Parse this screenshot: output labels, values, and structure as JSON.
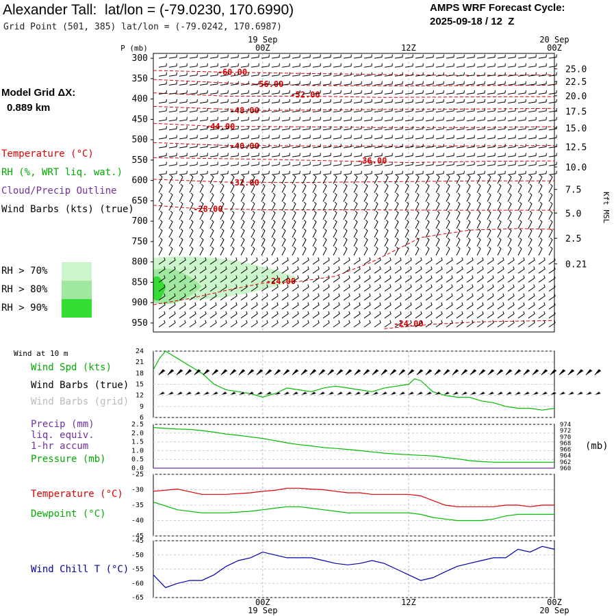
{
  "header": {
    "title": "Alexander Tall:  lat/lon = (-79.0230, 170.6990)",
    "grid_point": "Grid Point (501, 385) lat/lon = (-79.0242, 170.6987)",
    "cycle_line1": "AMPS WRF Forecast Cycle:",
    "cycle_line2": "2025-09-18 / 12  Z",
    "grid_label": "Model Grid ΔX:",
    "grid_value": "0.889 km"
  },
  "legend": {
    "temperature": "Temperature (°C)",
    "rh": "RH (%, WRT liq. wat.)",
    "cloud": "Cloud/Precip Outline",
    "wind": "Wind Barbs (kts) (true)",
    "rh70": "RH > 70%",
    "rh80": "RH > 80%",
    "rh90": "RH > 90%",
    "wind10": "Wind at 10 m",
    "wind_spd": "Wind Spd (kts)",
    "wind_barbs_true": "Wind Barbs (true)",
    "wind_barbs_grid": "Wind Barbs (grid)",
    "precip1": "Precip (mm)",
    "precip2": "liq. equiv.",
    "precip3": "1-hr accum",
    "pressure": "Pressure (mb)",
    "pressure_unit": "(mb)",
    "temp2": "Temperature (°C)",
    "dewpoint": "Dewpoint (°C)",
    "windchill": "Wind Chill T (°C)"
  },
  "colors": {
    "temp": "#dd0000",
    "rh": "#00bb00",
    "cloud": "#7030a0",
    "gray": "#bbbbbb",
    "windchill": "#0000aa",
    "rh70": "#ccf5cc",
    "rh80": "#a0e8a0",
    "rh90": "#33dd33"
  },
  "chart_data": [
    {
      "type": "line",
      "name": "time-height cross section",
      "time_labels": [
        {
          "hour": 0,
          "top": "19 Sep",
          "bottom": "00Z"
        },
        {
          "hour": 12,
          "top": "",
          "bottom": "12Z"
        },
        {
          "hour": 24,
          "top": "20 Sep",
          "bottom": "00Z"
        }
      ],
      "time_range_hours": [
        -9,
        24
      ],
      "y_label": "P (mb)",
      "pressure_levels": [
        300,
        350,
        400,
        450,
        500,
        550,
        600,
        650,
        700,
        750,
        800,
        850,
        900,
        950
      ],
      "right_axis_label": "Kft MSL",
      "height_ticks_kft": [
        {
          "label": "25.0",
          "p": 326
        },
        {
          "label": "22.5",
          "p": 357
        },
        {
          "label": "20.0",
          "p": 392
        },
        {
          "label": "17.5",
          "p": 430
        },
        {
          "label": "15.0",
          "p": 471
        },
        {
          "label": "12.5",
          "p": 517
        },
        {
          "label": "10.0",
          "p": 567
        },
        {
          "label": "7.5",
          "p": 622
        },
        {
          "label": "5.0",
          "p": 680
        },
        {
          "label": "2.5",
          "p": 742
        },
        {
          "label": "0.21",
          "p": 805
        }
      ],
      "temp_contours": [
        {
          "label": "-60.00",
          "label_hour": -2.5,
          "label_p": 334,
          "points": [
            [
              -9,
              330
            ],
            [
              -3,
              334
            ],
            [
              3,
              337
            ],
            [
              10,
              340
            ],
            [
              16,
              342
            ],
            [
              24,
              341
            ]
          ]
        },
        {
          "label": "-56.00",
          "label_hour": 0.5,
          "label_p": 364,
          "points": [
            [
              -9,
              352
            ],
            [
              -2,
              362
            ],
            [
              4,
              367
            ],
            [
              12,
              368
            ],
            [
              18,
              367
            ],
            [
              24,
              366
            ]
          ]
        },
        {
          "label": "-52.00",
          "label_hour": 3.5,
          "label_p": 390,
          "points": [
            [
              -9,
              385
            ],
            [
              -3,
              393
            ],
            [
              4,
              393
            ],
            [
              10,
              396
            ],
            [
              16,
              395
            ],
            [
              24,
              394
            ]
          ]
        },
        {
          "label": "-48.00",
          "label_hour": -1.5,
          "label_p": 428,
          "points": [
            [
              -9,
              418
            ],
            [
              -4,
              424
            ],
            [
              0,
              428
            ],
            [
              8,
              426
            ],
            [
              16,
              425
            ],
            [
              24,
              423
            ]
          ]
        },
        {
          "label": "-44.00",
          "label_hour": -3.5,
          "label_p": 468,
          "points": [
            [
              -9,
              460
            ],
            [
              -4,
              467
            ],
            [
              2,
              468
            ],
            [
              10,
              470
            ],
            [
              18,
              470
            ],
            [
              24,
              468
            ]
          ]
        },
        {
          "label": "-40.00",
          "label_hour": -1.5,
          "label_p": 516,
          "points": [
            [
              -9,
              507
            ],
            [
              -3,
              514
            ],
            [
              3,
              515
            ],
            [
              11,
              516
            ],
            [
              18,
              515
            ],
            [
              24,
              514
            ]
          ]
        },
        {
          "label": "-36.00",
          "label_hour": 9,
          "label_p": 552,
          "points": [
            [
              -9,
              544
            ],
            [
              0,
              548
            ],
            [
              6,
              552
            ],
            [
              12,
              556
            ],
            [
              18,
              553
            ],
            [
              24,
              552
            ]
          ]
        },
        {
          "label": "-32.00",
          "label_hour": -1.5,
          "label_p": 606,
          "points": [
            [
              -9,
              597
            ],
            [
              -3,
              604
            ],
            [
              3,
              605
            ],
            [
              11,
              603
            ],
            [
              18,
              601
            ],
            [
              24,
              601
            ]
          ]
        },
        {
          "label": "-28.00",
          "label_hour": -4.5,
          "label_p": 670,
          "points": [
            [
              -9,
              661
            ],
            [
              -6,
              668
            ],
            [
              0,
              672
            ],
            [
              8,
              672
            ],
            [
              14,
              673
            ],
            [
              20,
              673
            ],
            [
              24,
              673
            ]
          ]
        },
        {
          "label": "-24.00",
          "label_hour": 1.5,
          "label_p": 848,
          "points": [
            [
              -9,
              905
            ],
            [
              -6,
              890
            ],
            [
              -3,
              870
            ],
            [
              0,
              852
            ],
            [
              3,
              848
            ],
            [
              6,
              835
            ],
            [
              9,
              800
            ],
            [
              13,
              740
            ],
            [
              17,
              722
            ],
            [
              21,
              718
            ],
            [
              24,
              720
            ]
          ]
        },
        {
          "label": "-24.00",
          "label_hour": 12,
          "label_p": 952,
          "points": [
            [
              10,
              964
            ],
            [
              14,
              953
            ],
            [
              18,
              947
            ],
            [
              24,
              944
            ]
          ]
        }
      ],
      "rh_regions": [
        {
          "level": "70",
          "hour_range": [
            -9,
            3
          ],
          "p_range": [
            790,
            890
          ]
        },
        {
          "level": "80",
          "hour_range": [
            -9,
            -5
          ],
          "p_range": [
            820,
            900
          ]
        },
        {
          "level": "90",
          "hour_range": [
            -9,
            -8
          ],
          "p_range": [
            840,
            890
          ]
        }
      ]
    },
    {
      "type": "line",
      "name": "10 m wind speed",
      "y_ticks": [
        6,
        9,
        12,
        15,
        18,
        21,
        24
      ],
      "ylim": [
        6,
        24
      ],
      "x": [
        -9,
        -8.5,
        -8,
        -7.5,
        -7,
        -6,
        -5,
        -4,
        -3,
        -2,
        -1,
        0,
        1,
        2,
        3,
        4,
        5,
        6,
        7,
        8,
        9,
        10,
        11,
        12,
        12.5,
        13,
        14,
        15,
        16,
        17,
        18,
        19,
        20,
        21,
        22,
        23,
        24
      ],
      "values": [
        19,
        22,
        24,
        23,
        22,
        20,
        18,
        15,
        13.5,
        13,
        12.5,
        11.5,
        12.5,
        14,
        13.5,
        13,
        14,
        14.5,
        14,
        13.5,
        13,
        14,
        14.5,
        15,
        16.5,
        16,
        13,
        12,
        11.5,
        11.5,
        10.5,
        10,
        9,
        8.5,
        8.5,
        8,
        8.5
      ]
    },
    {
      "type": "line",
      "name": "precip and pressure",
      "precip_ticks": [
        "0.0",
        "0.5",
        "1.0",
        "1.5",
        "2.0",
        "2.5"
      ],
      "precip_range": [
        0,
        2.5
      ],
      "pressure_ticks": [
        "960",
        "962",
        "964",
        "966",
        "968",
        "970",
        "972",
        "974"
      ],
      "pressure_range": [
        960,
        974
      ],
      "x": [
        -9,
        -8,
        -7,
        -6,
        -5,
        -4,
        -3,
        -2,
        -1,
        0,
        1,
        2,
        3,
        4,
        5,
        6,
        7,
        8,
        9,
        10,
        11,
        12,
        13,
        14,
        15,
        16,
        17,
        18,
        19,
        20,
        21,
        22,
        23,
        24
      ],
      "pressure": [
        973.0,
        972.7,
        972.5,
        972.4,
        972.0,
        971.5,
        970.9,
        970.5,
        970.0,
        969.5,
        968.8,
        968.1,
        967.5,
        967.1,
        966.6,
        966.3,
        966.0,
        965.6,
        965.2,
        964.8,
        964.5,
        964.3,
        964.1,
        963.9,
        963.4,
        963.0,
        962.4,
        962.1,
        961.9,
        961.9,
        961.9,
        961.9,
        961.9,
        961.9
      ],
      "precip": [
        0,
        0,
        0,
        0,
        0,
        0,
        0,
        0,
        0,
        0,
        0,
        0,
        0,
        0,
        0,
        0,
        0,
        0,
        0,
        0,
        0,
        0,
        0,
        0,
        0,
        0,
        0,
        0,
        0,
        0,
        0,
        0,
        0,
        0
      ]
    },
    {
      "type": "line",
      "name": "temperature and dewpoint",
      "y_ticks": [
        -45,
        -40,
        -35,
        -30,
        -25
      ],
      "ylim": [
        -45,
        -25
      ],
      "x": [
        -9,
        -7,
        -5,
        -3,
        -1,
        0,
        1,
        2,
        3,
        4,
        5,
        6,
        7,
        8,
        9,
        10,
        11,
        12,
        13,
        14,
        15,
        16,
        17,
        18,
        19,
        20,
        21,
        22,
        23,
        24
      ],
      "temperature": [
        -30.5,
        -29.8,
        -31.5,
        -31.5,
        -31,
        -30.5,
        -30.2,
        -29.5,
        -29.5,
        -29.8,
        -30,
        -30.5,
        -31,
        -31,
        -31.5,
        -31.5,
        -31.5,
        -31.5,
        -32,
        -33.5,
        -35,
        -35.5,
        -35.5,
        -35.5,
        -35.5,
        -35,
        -35,
        -35.5,
        -35,
        -35
      ],
      "dewpoint": [
        -34,
        -36.5,
        -37.5,
        -37.5,
        -37,
        -36.5,
        -36,
        -35.5,
        -35.5,
        -36,
        -36.5,
        -37,
        -37.5,
        -37.5,
        -37.5,
        -37.5,
        -37.5,
        -37.5,
        -38,
        -39,
        -39.5,
        -40,
        -40,
        -40,
        -39.5,
        -38.5,
        -38,
        -38,
        -38,
        -38
      ]
    },
    {
      "type": "line",
      "name": "wind chill",
      "y_ticks": [
        -65,
        -60,
        -55,
        -50,
        -45
      ],
      "ylim": [
        -65,
        -45
      ],
      "x": [
        -9,
        -8,
        -7,
        -6,
        -5,
        -4,
        -3,
        -2,
        -1,
        0,
        1,
        2,
        3,
        4,
        5,
        6,
        7,
        8,
        9,
        10,
        11,
        12,
        13,
        14,
        15,
        16,
        17,
        18,
        19,
        20,
        21,
        22,
        23,
        24
      ],
      "windchill": [
        -57,
        -61.5,
        -60,
        -59,
        -59,
        -57,
        -54,
        -52,
        -51,
        -49,
        -50,
        -51,
        -51,
        -51,
        -52,
        -53,
        -53.5,
        -53,
        -52,
        -53,
        -55,
        -57,
        -59,
        -58,
        -56,
        -54,
        -53,
        -52,
        -51,
        -51,
        -48,
        -49,
        -47,
        -48
      ]
    }
  ]
}
